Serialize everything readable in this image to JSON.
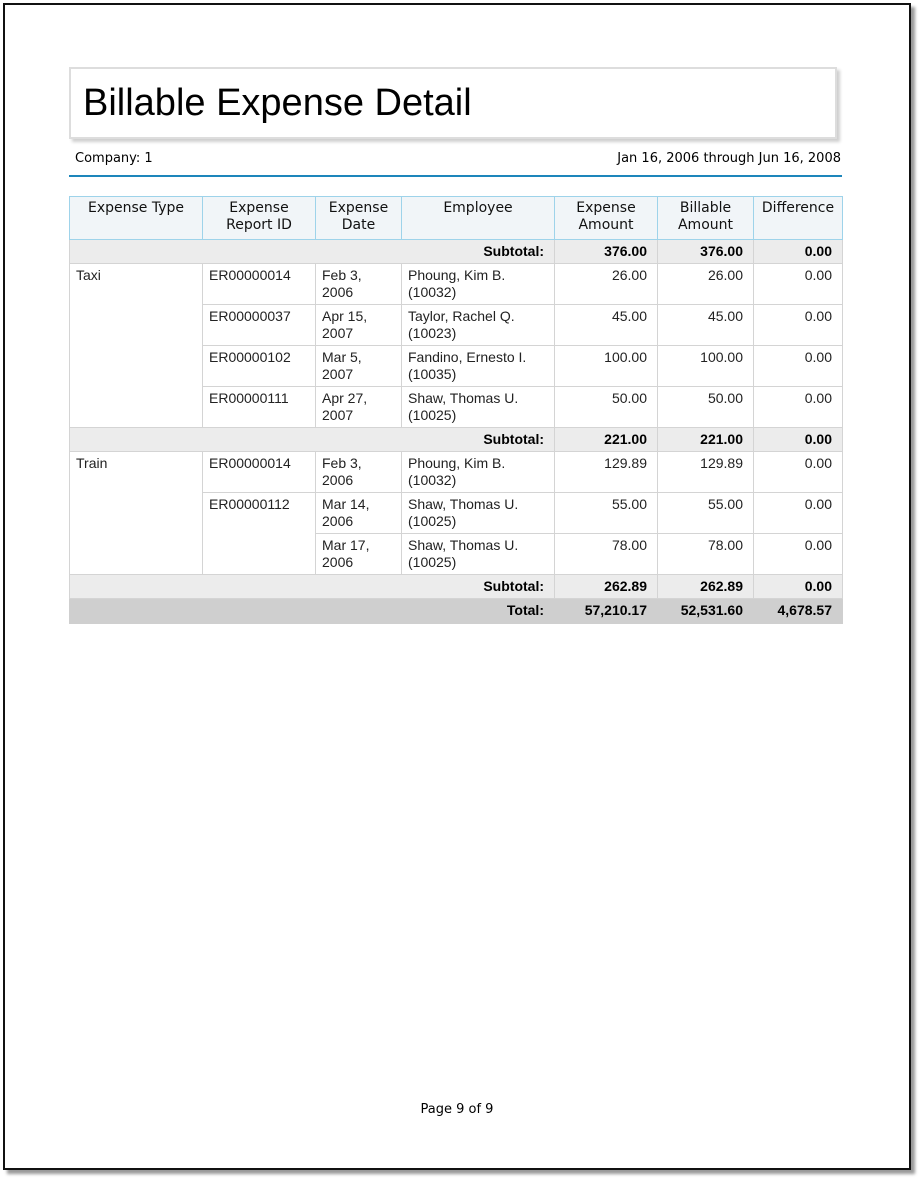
{
  "title": "Billable Expense Detail",
  "company": "Company: 1",
  "date_range": "Jan 16, 2006 through Jun 16, 2008",
  "columns": [
    "Expense Type",
    "Expense Report ID",
    "Expense Date",
    "Employee",
    "Expense Amount",
    "Billable Amount",
    "Difference"
  ],
  "rows": [
    {
      "kind": "sub",
      "label": "Subtotal:",
      "values": [
        "376.00",
        "376.00",
        "0.00"
      ]
    },
    {
      "kind": "item",
      "type": "Taxi",
      "report": "ER00000014",
      "date": "Feb 3, 2006",
      "employee": "Phoung, Kim B. (10032)",
      "values": [
        "26.00",
        "26.00",
        "0.00"
      ]
    },
    {
      "kind": "item",
      "type": "",
      "report": "ER00000037",
      "date": "Apr 15, 2007",
      "employee": "Taylor, Rachel Q. (10023)",
      "values": [
        "45.00",
        "45.00",
        "0.00"
      ]
    },
    {
      "kind": "item",
      "type": "",
      "report": "ER00000102",
      "date": "Mar 5, 2007",
      "employee": "Fandino, Ernesto I. (10035)",
      "values": [
        "100.00",
        "100.00",
        "0.00"
      ]
    },
    {
      "kind": "item",
      "type": "",
      "report": "ER00000111",
      "date": "Apr 27, 2007",
      "employee": "Shaw, Thomas U. (10025)",
      "values": [
        "50.00",
        "50.00",
        "0.00"
      ]
    },
    {
      "kind": "sub",
      "label": "Subtotal:",
      "values": [
        "221.00",
        "221.00",
        "0.00"
      ]
    },
    {
      "kind": "item",
      "type": "Train",
      "report": "ER00000014",
      "date": "Feb 3, 2006",
      "employee": "Phoung, Kim B. (10032)",
      "values": [
        "129.89",
        "129.89",
        "0.00"
      ]
    },
    {
      "kind": "item",
      "type": "",
      "report": "ER00000112",
      "date": "Mar 14, 2006",
      "employee": "Shaw, Thomas U. (10025)",
      "values": [
        "55.00",
        "55.00",
        "0.00"
      ]
    },
    {
      "kind": "item",
      "type": "",
      "report": "",
      "date": "Mar 17, 2006",
      "employee": "Shaw, Thomas U. (10025)",
      "values": [
        "78.00",
        "78.00",
        "0.00"
      ]
    },
    {
      "kind": "sub",
      "label": "Subtotal:",
      "values": [
        "262.89",
        "262.89",
        "0.00"
      ]
    },
    {
      "kind": "tot",
      "label": "Total:",
      "values": [
        "57,210.17",
        "52,531.60",
        "4,678.57"
      ]
    }
  ],
  "footer": "Page 9 of 9"
}
